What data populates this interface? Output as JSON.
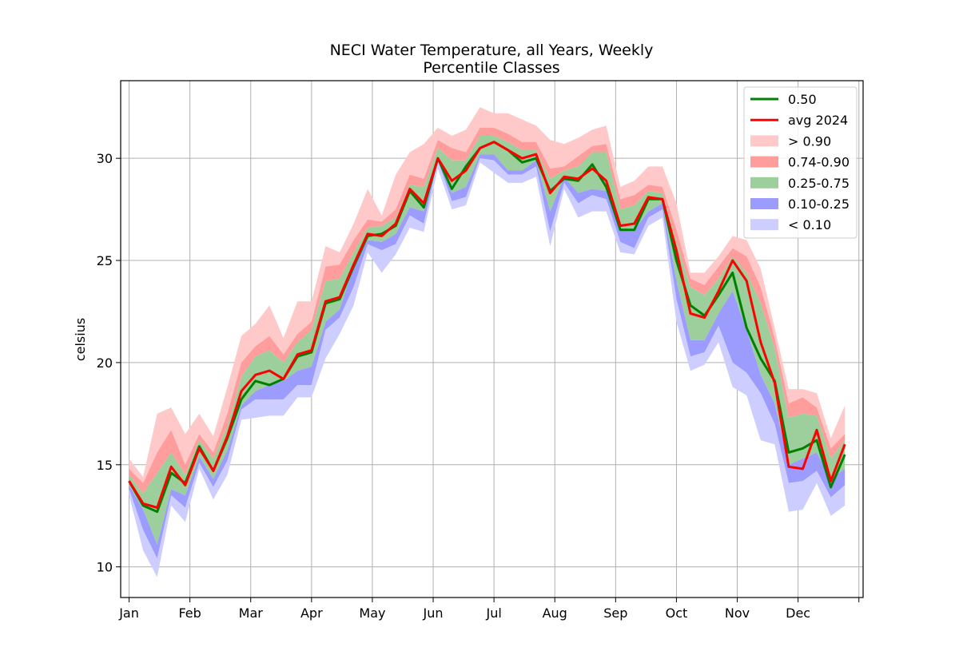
{
  "chart_data": {
    "type": "area",
    "title": "NECI Water Temperature, all Years, Weekly",
    "subtitle": "Percentile Classes",
    "xlabel": "",
    "ylabel": "celsius",
    "ylim": [
      8.5,
      33.8
    ],
    "yticks": [
      10,
      15,
      20,
      25,
      30
    ],
    "month_ticks": [
      "Jan",
      "Feb",
      "Mar",
      "Apr",
      "May",
      "Jun",
      "Jul",
      "Aug",
      "Sep",
      "Oct",
      "Nov",
      "Dec",
      ""
    ],
    "week_range": [
      -0.6,
      52.3
    ],
    "grid": true,
    "legend_position": "top-right",
    "colors": {
      "median": "#008000",
      "avg": "#ff0000",
      "gt90": "#ffc9c9",
      "p74_90": "#ff9c9c",
      "p25_75": "#9ccf9c",
      "p10_25": "#9c9cff",
      "lt10": "#cdcdff"
    },
    "legend": {
      "median": "0.50",
      "avg": "avg 2024",
      "gt90": "> 0.90",
      "p74_90": "0.74-0.90",
      "p25_75": "0.25-0.75",
      "p10_25": "0.10-0.25",
      "lt10": "< 0.10"
    },
    "weeks": [
      0,
      1,
      2,
      3,
      4,
      5,
      6,
      7,
      8,
      9,
      10,
      11,
      12,
      13,
      14,
      15,
      16,
      17,
      18,
      19,
      20,
      21,
      22,
      23,
      24,
      25,
      26,
      27,
      28,
      29,
      30,
      31,
      32,
      33,
      34,
      35,
      36,
      37,
      38,
      39,
      40,
      41,
      42,
      43,
      44,
      45,
      46,
      47,
      48,
      49,
      50,
      51
    ],
    "series": {
      "min": [
        13.5,
        10.8,
        9.5,
        13.0,
        12.2,
        14.8,
        13.3,
        14.5,
        17.2,
        17.3,
        17.4,
        17.4,
        18.3,
        18.3,
        20.2,
        21.4,
        22.8,
        25.4,
        24.4,
        25.3,
        26.6,
        26.4,
        29.5,
        27.5,
        27.7,
        29.8,
        29.3,
        28.8,
        28.8,
        29.1,
        25.7,
        28.5,
        27.1,
        27.4,
        27.4,
        25.4,
        25.3,
        26.7,
        27.1,
        22.0,
        19.6,
        19.9,
        21.0,
        18.8,
        18.4,
        16.2,
        16.0,
        12.7,
        12.8,
        14.1,
        12.5,
        13.0
      ],
      "p10": [
        13.8,
        11.8,
        10.4,
        13.5,
        12.9,
        15.1,
        13.9,
        15.2,
        17.7,
        18.2,
        18.2,
        18.2,
        18.9,
        18.9,
        21.6,
        22.2,
        23.7,
        25.8,
        25.5,
        25.8,
        27.2,
        26.8,
        29.9,
        27.9,
        28.1,
        30.0,
        29.9,
        29.2,
        29.2,
        29.6,
        26.4,
        28.8,
        27.8,
        28.2,
        28.0,
        25.9,
        25.6,
        27.1,
        27.5,
        23.1,
        20.3,
        20.5,
        21.8,
        20.0,
        19.5,
        18.5,
        17.0,
        14.1,
        14.2,
        14.7,
        13.4,
        14.0
      ],
      "p25": [
        14.0,
        12.8,
        11.1,
        13.8,
        13.5,
        15.4,
        14.3,
        15.7,
        17.9,
        18.6,
        18.9,
        19.1,
        19.6,
        19.8,
        22.0,
        22.6,
        24.7,
        26.0,
        25.9,
        26.3,
        27.6,
        27.4,
        30.1,
        28.3,
        28.6,
        30.2,
        30.2,
        29.4,
        29.4,
        29.9,
        27.4,
        29.1,
        28.3,
        28.5,
        28.4,
        26.5,
        26.5,
        27.4,
        27.8,
        24.0,
        21.1,
        21.1,
        22.4,
        23.5,
        21.6,
        19.4,
        18.0,
        15.0,
        15.3,
        15.6,
        14.3,
        14.8
      ],
      "p50": [
        14.2,
        13.0,
        12.7,
        14.6,
        14.1,
        15.9,
        14.7,
        16.3,
        18.2,
        19.1,
        18.9,
        19.2,
        20.3,
        20.5,
        22.9,
        23.1,
        24.7,
        26.2,
        26.3,
        26.7,
        28.4,
        27.6,
        30.0,
        28.5,
        29.6,
        30.5,
        30.8,
        30.4,
        29.8,
        30.0,
        28.4,
        29.0,
        28.9,
        29.7,
        28.6,
        26.5,
        26.5,
        28.0,
        28.0,
        25.0,
        22.8,
        22.3,
        23.3,
        24.4,
        21.7,
        20.2,
        19.1,
        15.6,
        15.8,
        16.2,
        13.9,
        15.5
      ],
      "p75": [
        14.5,
        13.6,
        14.6,
        15.6,
        14.5,
        16.2,
        15.3,
        16.9,
        19.3,
        20.3,
        20.6,
        20.0,
        21.0,
        21.6,
        24.0,
        24.1,
        25.4,
        26.6,
        26.7,
        27.1,
        28.7,
        28.6,
        30.5,
        29.9,
        29.9,
        31.1,
        31.1,
        30.8,
        30.4,
        30.4,
        29.0,
        29.4,
        29.6,
        30.3,
        30.3,
        27.5,
        27.7,
        28.4,
        28.3,
        25.9,
        23.7,
        23.3,
        24.1,
        25.2,
        24.4,
        22.9,
        20.7,
        17.3,
        17.5,
        17.4,
        15.3,
        16.2
      ],
      "p90": [
        14.8,
        14.1,
        15.6,
        16.7,
        15.0,
        16.5,
        15.6,
        17.5,
        20.0,
        20.8,
        21.3,
        20.4,
        21.4,
        22.0,
        24.7,
        24.8,
        26.0,
        27.0,
        26.9,
        27.5,
        29.2,
        29.0,
        30.9,
        30.5,
        30.3,
        31.5,
        31.5,
        31.2,
        30.8,
        30.8,
        29.5,
        29.6,
        30.1,
        30.6,
        30.7,
        28.0,
        28.2,
        28.7,
        28.6,
        26.5,
        24.1,
        23.8,
        24.7,
        25.6,
        25.2,
        23.7,
        21.2,
        18.0,
        18.3,
        17.8,
        15.8,
        16.5
      ],
      "max": [
        15.3,
        14.4,
        17.5,
        17.8,
        16.5,
        17.5,
        16.4,
        18.8,
        21.3,
        21.9,
        22.8,
        21.2,
        23.0,
        23.0,
        25.7,
        25.4,
        26.8,
        28.5,
        27.2,
        29.2,
        30.3,
        30.7,
        31.5,
        31.1,
        31.4,
        32.5,
        32.2,
        32.2,
        31.9,
        31.6,
        30.9,
        30.7,
        31.0,
        31.4,
        31.6,
        28.6,
        28.9,
        29.6,
        29.6,
        27.8,
        24.4,
        24.4,
        25.2,
        26.2,
        26.0,
        24.6,
        21.7,
        18.7,
        18.7,
        18.5,
        16.3,
        17.9
      ],
      "avg2024": [
        14.2,
        13.1,
        12.9,
        14.9,
        14.0,
        15.8,
        14.7,
        16.4,
        18.6,
        19.4,
        19.6,
        19.2,
        20.4,
        20.6,
        23.0,
        23.2,
        24.8,
        26.3,
        26.2,
        26.8,
        28.5,
        27.8,
        30.0,
        28.9,
        29.4,
        30.5,
        30.8,
        30.4,
        30.0,
        30.2,
        28.3,
        29.1,
        29.0,
        29.5,
        28.9,
        26.7,
        26.8,
        28.1,
        28.0,
        25.5,
        22.4,
        22.2,
        23.5,
        25.0,
        24.0,
        21.0,
        19.0,
        14.9,
        14.8,
        16.7,
        14.2,
        16.0
      ]
    }
  }
}
